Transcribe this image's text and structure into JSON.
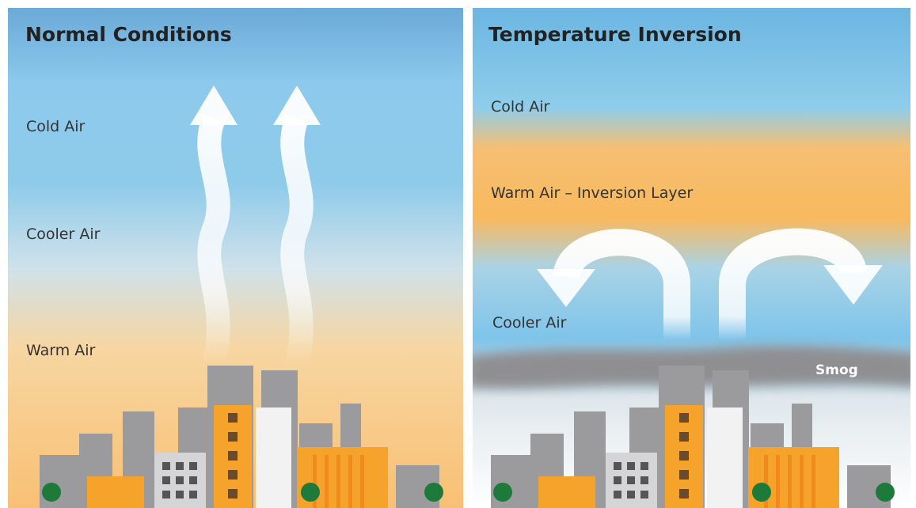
{
  "panels": [
    {
      "title": "Normal Conditions",
      "labels": [
        "Cold Air",
        "Cooler Air",
        "Warm Air"
      ]
    },
    {
      "title": "Temperature Inversion",
      "labels": [
        "Cold Air",
        "Warm Air – Inversion Layer",
        "Cooler Air",
        "Smog"
      ]
    }
  ]
}
